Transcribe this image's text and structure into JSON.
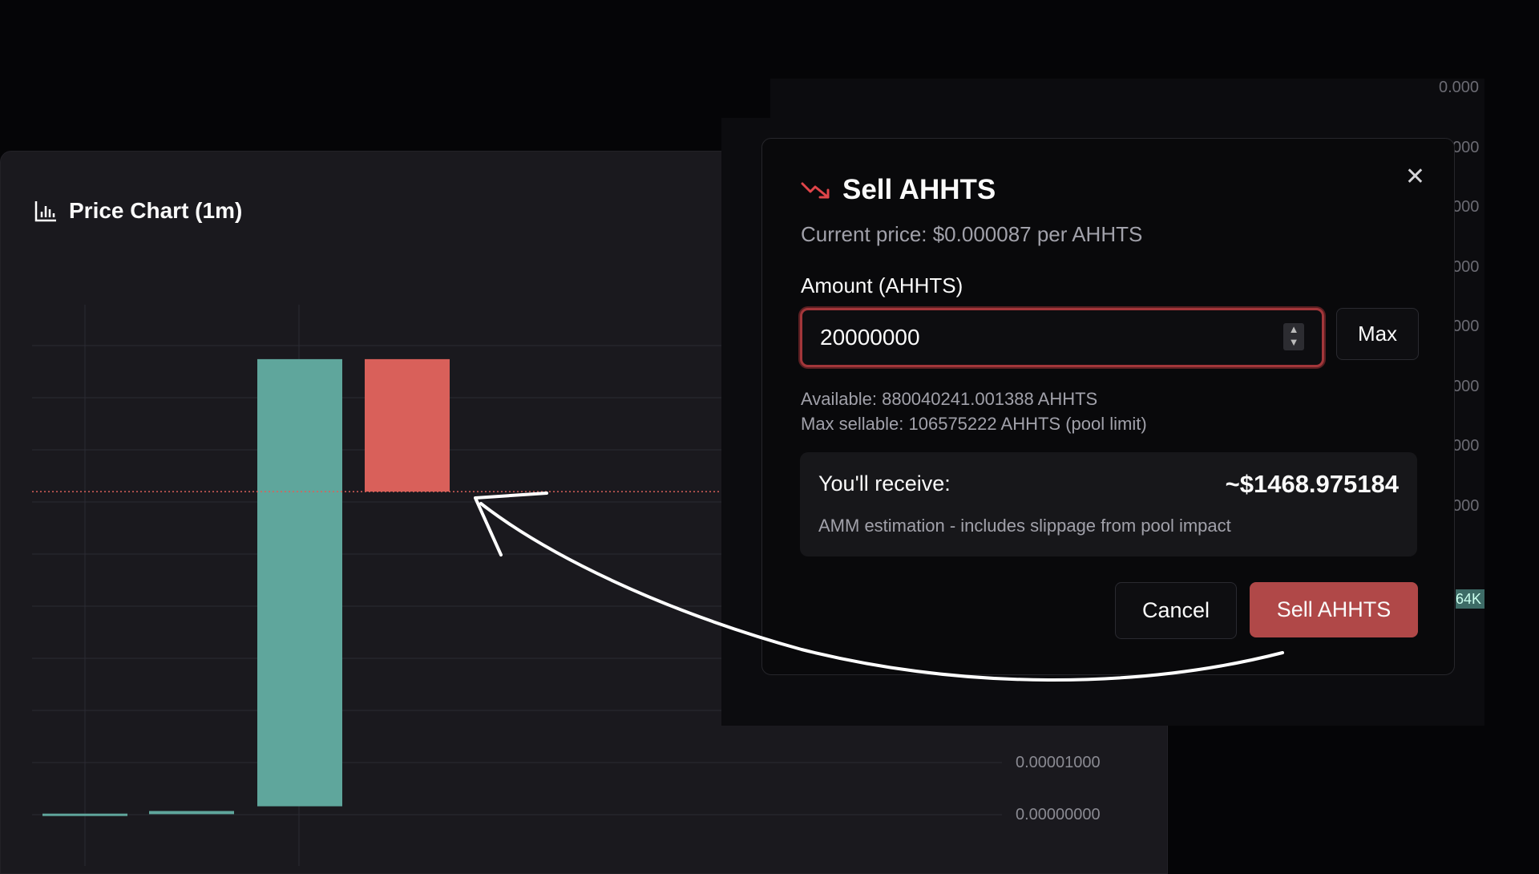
{
  "chart": {
    "title": "Price Chart (1m)",
    "icon": "bar-chart-icon",
    "right_axis_partial_labels": [
      "0.000",
      "000",
      "000",
      "000",
      "000",
      "000",
      "000",
      "000"
    ],
    "volume_badge_partial": "64K"
  },
  "chart_data": {
    "type": "candlestick",
    "title": "Price Chart (1m)",
    "ylim": [
      0,
      9e-05
    ],
    "ytick_labels": [
      "0.00001000",
      "0.00000000"
    ],
    "ytick_values": [
      1e-05,
      0
    ],
    "candles": [
      {
        "open": 1e-07,
        "close": 2e-07,
        "direction": "up"
      },
      {
        "open": 1e-07,
        "close": 7e-07,
        "direction": "up"
      },
      {
        "open": 1.6e-06,
        "close": 8.7e-05,
        "direction": "up"
      },
      {
        "open": 8.7e-05,
        "close": 6.17e-05,
        "direction": "down"
      }
    ],
    "reference_line": 6.17e-05,
    "colors": {
      "up": "#5fa69c",
      "down": "#d9605a"
    },
    "grid": true
  },
  "modal": {
    "title": "Sell AHHTS",
    "title_icon": "trending-down-icon",
    "close_icon": "close-icon",
    "current_price": "Current price: $0.000087 per AHHTS",
    "amount_label": "Amount (AHHTS)",
    "amount_value": "20000000",
    "max_label": "Max",
    "available": "Available: 880040241.001388 AHHTS",
    "max_sellable": "Max sellable: 106575222 AHHTS (pool limit)",
    "receive_label": "You'll receive:",
    "receive_value": "~$1468.975184",
    "receive_note": "AMM estimation - includes slippage from pool impact",
    "cancel_label": "Cancel",
    "sell_label": "Sell AHHTS",
    "colors": {
      "accent_red": "#b04848",
      "input_border": "#a3363a"
    }
  }
}
